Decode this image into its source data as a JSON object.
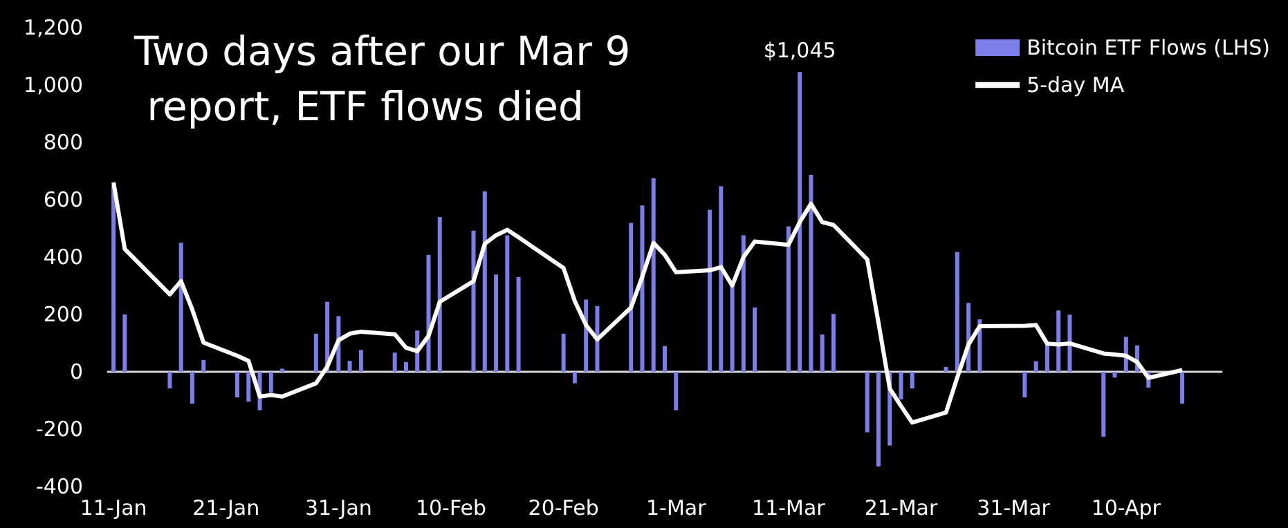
{
  "chart_data": {
    "type": "bar",
    "title": "Two days after our Mar 9 report, ETF flows died",
    "x": [
      "--01-11",
      "--01-12",
      "--01-16",
      "--01-17",
      "--01-18",
      "--01-19",
      "--01-22",
      "--01-23",
      "--01-24",
      "--01-25",
      "--01-26",
      "--01-29",
      "--01-30",
      "--01-31",
      "--02-01",
      "--02-02",
      "--02-05",
      "--02-06",
      "--02-07",
      "--02-08",
      "--02-09",
      "--02-12",
      "--02-13",
      "--02-14",
      "--02-15",
      "--02-16",
      "--02-20",
      "--02-21",
      "--02-22",
      "--02-23",
      "--02-26",
      "--02-27",
      "--02-28",
      "--02-29",
      "--03-01",
      "--03-04",
      "--03-05",
      "--03-06",
      "--03-07",
      "--03-08",
      "--03-11",
      "--03-12",
      "--03-13",
      "--03-14",
      "--03-15",
      "--03-18",
      "--03-19",
      "--03-20",
      "--03-21",
      "--03-22",
      "--03-25",
      "--03-26",
      "--03-27",
      "--03-28",
      "--04-01",
      "--04-02",
      "--04-03",
      "--04-04",
      "--04-05",
      "--04-08",
      "--04-09",
      "--04-10",
      "--04-11",
      "--04-12",
      "--04-15"
    ],
    "series": [
      {
        "name": "Bitcoin ETF Flows (LHS)",
        "color": "#7b7ee8",
        "values": [
          650,
          200,
          -58,
          450,
          -111,
          41,
          -89,
          -104,
          -134,
          -73,
          11,
          133,
          244,
          194,
          38,
          76,
          67,
          34,
          144,
          408,
          540,
          492,
          629,
          339,
          476,
          331,
          133,
          -40,
          252,
          229,
          519,
          580,
          675,
          90,
          -134,
          565,
          647,
          301,
          476,
          224,
          507,
          1045,
          687,
          130,
          202,
          -211,
          -330,
          -257,
          -96,
          -58,
          17,
          418,
          240,
          183,
          -89,
          37,
          95,
          214,
          199,
          -226,
          -20,
          122,
          92,
          -55,
          -111
        ]
      },
      {
        "name": "5-day MA",
        "type": "line",
        "color": "#ffffff",
        "values": [
          660,
          428,
          270,
          316,
          217,
          102,
          56,
          38,
          -86,
          -81,
          -86,
          -40,
          18,
          110,
          133,
          140,
          131,
          84,
          72,
          125,
          244,
          316,
          446,
          476,
          495,
          469,
          362,
          247,
          163,
          113,
          224,
          331,
          449,
          408,
          347,
          354,
          365,
          301,
          400,
          454,
          443,
          522,
          586,
          522,
          512,
          392,
          171,
          -58,
          -119,
          -177,
          -142,
          -20,
          95,
          159,
          160,
          163,
          98,
          95,
          99,
          64,
          60,
          56,
          34,
          -21,
          6
        ]
      }
    ],
    "xlim": [
      "--01-10T12:00",
      "--04-18T12:00"
    ],
    "xticks": [
      {
        "value": "--01-11",
        "label": "11-Jan"
      },
      {
        "value": "--01-21",
        "label": "21-Jan"
      },
      {
        "value": "--01-31",
        "label": "31-Jan"
      },
      {
        "value": "--02-10",
        "label": "10-Feb"
      },
      {
        "value": "--02-20",
        "label": "20-Feb"
      },
      {
        "value": "--03-01",
        "label": "1-Mar"
      },
      {
        "value": "--03-11",
        "label": "11-Mar"
      },
      {
        "value": "--03-21",
        "label": "21-Mar"
      },
      {
        "value": "--03-31",
        "label": "31-Mar"
      },
      {
        "value": "--04-10",
        "label": "10-Apr"
      }
    ],
    "ylim": [
      -400,
      1200
    ],
    "yticks": [
      -400,
      -200,
      0,
      200,
      400,
      600,
      800,
      {
        "value": 1000,
        "label": "1,000"
      },
      {
        "value": 1200,
        "label": "1,200"
      }
    ],
    "marker": "none",
    "legend": "top right",
    "annotations": [
      {
        "text": "$1,045",
        "x": "--03-12",
        "y": 1045
      }
    ]
  }
}
